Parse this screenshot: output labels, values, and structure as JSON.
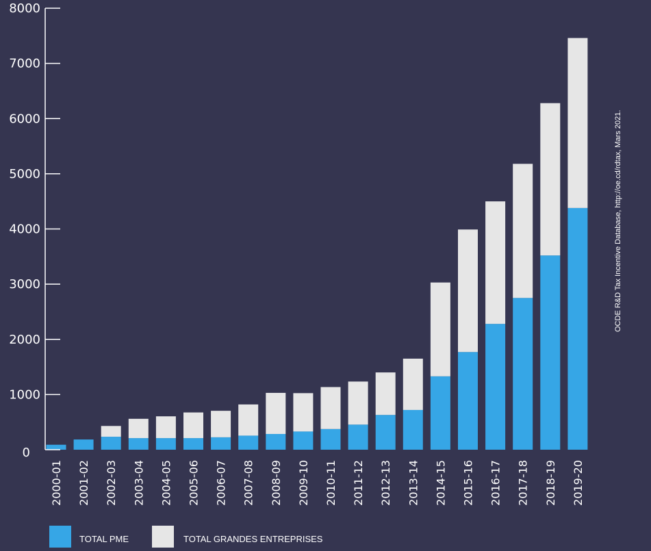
{
  "chart_data": {
    "type": "bar",
    "stacked": true,
    "categories": [
      "2000-01",
      "2001-02",
      "2002-03",
      "2003-04",
      "2004-05",
      "2005-06",
      "2006-07",
      "2007-08",
      "2008-09",
      "2009-10",
      "2010-11",
      "2011-12",
      "2012-13",
      "2013-14",
      "2014-15",
      "2015-16",
      "2016-17",
      "2017-18",
      "2018-19",
      "2019-20"
    ],
    "series": [
      {
        "name": "TOTAL PME",
        "color": "#36a6e6",
        "values": [
          90,
          185,
          235,
          210,
          210,
          210,
          225,
          255,
          285,
          330,
          375,
          455,
          630,
          720,
          1330,
          1770,
          2280,
          2750,
          3520,
          4380
        ]
      },
      {
        "name": "TOTAL GRANDES ENTREPRISES",
        "color": "#e6e6e6",
        "values": [
          0,
          0,
          195,
          350,
          395,
          465,
          480,
          565,
          745,
          695,
          760,
          780,
          770,
          930,
          1700,
          2220,
          2220,
          2430,
          2760,
          3080
        ]
      }
    ],
    "yticks": [
      0,
      1000,
      2000,
      3000,
      4000,
      5000,
      6000,
      7000,
      8000
    ],
    "ylim": [
      0,
      8000
    ],
    "legend_position": "bottom-left",
    "source": "OCDE R&D Tax Incentive Database, http://oe.cd/rdtax, Mars 2021."
  }
}
